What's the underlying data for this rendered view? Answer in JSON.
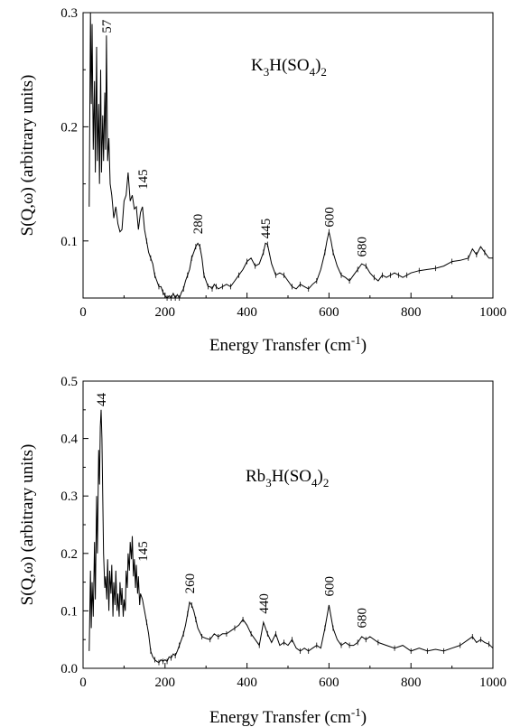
{
  "chart_data": [
    {
      "type": "line",
      "compound": {
        "base": "K",
        "sub1": "3",
        "mid": "H(SO",
        "sub2": "4",
        "end": ")",
        "sub3": "2"
      },
      "xlabel": {
        "main": "Energy Transfer (cm",
        "sup": "-1",
        "end": ")"
      },
      "ylabel": "S(Q,ω) (arbitrary units)",
      "xlim": [
        0,
        1000
      ],
      "ylim": [
        0.05,
        0.3
      ],
      "xticks": [
        "0",
        "200",
        "400",
        "600",
        "800",
        "1000"
      ],
      "yticks": [
        "0.1",
        "0.2",
        "0.3"
      ],
      "ytick_values": [
        0.1,
        0.2,
        0.3
      ],
      "peak_labels": [
        {
          "text": "57",
          "x": 57,
          "y": 0.282
        },
        {
          "text": "145",
          "x": 145,
          "y": 0.145
        },
        {
          "text": "280",
          "x": 280,
          "y": 0.106
        },
        {
          "text": "445",
          "x": 445,
          "y": 0.102
        },
        {
          "text": "600",
          "x": 600,
          "y": 0.112
        },
        {
          "text": "680",
          "x": 680,
          "y": 0.086
        }
      ],
      "series": [
        {
          "x": [
            15,
            18,
            20,
            22,
            25,
            28,
            30,
            33,
            35,
            38,
            40,
            43,
            45,
            48,
            50,
            53,
            55,
            57,
            60,
            63,
            66,
            70,
            75,
            80,
            85,
            90,
            95,
            100,
            105,
            110,
            115,
            120,
            125,
            130,
            135,
            140,
            145,
            150,
            155,
            160,
            165,
            170,
            175,
            180,
            185,
            190,
            195,
            200,
            205,
            210,
            215,
            220,
            225,
            230,
            235,
            240,
            245,
            250,
            255,
            260,
            265,
            270,
            275,
            280,
            285,
            290,
            295,
            300,
            305,
            310,
            315,
            320,
            325,
            330,
            340,
            350,
            360,
            370,
            380,
            390,
            400,
            410,
            420,
            430,
            440,
            445,
            450,
            460,
            470,
            480,
            490,
            500,
            510,
            520,
            530,
            540,
            550,
            560,
            570,
            580,
            590,
            595,
            600,
            605,
            610,
            620,
            630,
            640,
            650,
            660,
            670,
            680,
            690,
            700,
            710,
            720,
            730,
            740,
            750,
            760,
            770,
            780,
            790,
            800,
            820,
            840,
            860,
            880,
            900,
            920,
            940,
            950,
            960,
            970,
            980,
            990,
            1000
          ],
          "y": [
            0.13,
            0.3,
            0.22,
            0.29,
            0.18,
            0.24,
            0.16,
            0.27,
            0.17,
            0.22,
            0.15,
            0.25,
            0.16,
            0.21,
            0.17,
            0.23,
            0.18,
            0.28,
            0.17,
            0.19,
            0.15,
            0.14,
            0.12,
            0.13,
            0.115,
            0.108,
            0.11,
            0.135,
            0.14,
            0.16,
            0.135,
            0.14,
            0.128,
            0.13,
            0.11,
            0.125,
            0.13,
            0.11,
            0.1,
            0.09,
            0.085,
            0.08,
            0.07,
            0.065,
            0.06,
            0.06,
            0.055,
            0.052,
            0.05,
            0.052,
            0.05,
            0.054,
            0.05,
            0.053,
            0.05,
            0.055,
            0.058,
            0.065,
            0.07,
            0.075,
            0.085,
            0.09,
            0.095,
            0.098,
            0.095,
            0.085,
            0.07,
            0.065,
            0.06,
            0.06,
            0.058,
            0.062,
            0.06,
            0.058,
            0.06,
            0.062,
            0.06,
            0.065,
            0.07,
            0.075,
            0.082,
            0.085,
            0.078,
            0.08,
            0.09,
            0.098,
            0.097,
            0.08,
            0.07,
            0.072,
            0.07,
            0.065,
            0.06,
            0.058,
            0.062,
            0.06,
            0.058,
            0.062,
            0.065,
            0.075,
            0.09,
            0.1,
            0.108,
            0.1,
            0.09,
            0.078,
            0.07,
            0.068,
            0.065,
            0.07,
            0.075,
            0.08,
            0.078,
            0.072,
            0.068,
            0.065,
            0.07,
            0.068,
            0.07,
            0.072,
            0.07,
            0.068,
            0.07,
            0.072,
            0.074,
            0.075,
            0.076,
            0.078,
            0.082,
            0.083,
            0.085,
            0.093,
            0.088,
            0.095,
            0.09,
            0.085,
            0.085
          ]
        }
      ]
    },
    {
      "type": "line",
      "compound": {
        "base": "Rb",
        "sub1": "3",
        "mid": "H(SO",
        "sub2": "4",
        "end": ")",
        "sub3": "2"
      },
      "xlabel": {
        "main": "Energy Transfer (cm",
        "sup": "-1",
        "end": ")"
      },
      "ylabel": "S(Q,ω) (arbitrary units)",
      "xlim": [
        0,
        1000
      ],
      "ylim": [
        0,
        0.5
      ],
      "xticks": [
        "0",
        "200",
        "400",
        "600",
        "800",
        "1000"
      ],
      "yticks": [
        "0.0",
        "0.1",
        "0.2",
        "0.3",
        "0.4",
        "0.5"
      ],
      "ytick_values": [
        0,
        0.1,
        0.2,
        0.3,
        0.4,
        0.5
      ],
      "peak_labels": [
        {
          "text": "44",
          "x": 44,
          "y": 0.456
        },
        {
          "text": "145",
          "x": 145,
          "y": 0.186
        },
        {
          "text": "260",
          "x": 260,
          "y": 0.13
        },
        {
          "text": "440",
          "x": 440,
          "y": 0.095
        },
        {
          "text": "600",
          "x": 600,
          "y": 0.125
        },
        {
          "text": "680",
          "x": 680,
          "y": 0.07
        }
      ],
      "series": [
        {
          "x": [
            15,
            18,
            20,
            22,
            25,
            28,
            30,
            33,
            35,
            38,
            40,
            42,
            44,
            46,
            48,
            50,
            53,
            55,
            58,
            60,
            63,
            65,
            68,
            70,
            73,
            75,
            78,
            80,
            83,
            85,
            88,
            90,
            93,
            95,
            98,
            100,
            103,
            105,
            108,
            110,
            113,
            115,
            118,
            120,
            123,
            125,
            128,
            130,
            133,
            135,
            138,
            140,
            145,
            150,
            155,
            160,
            165,
            170,
            175,
            180,
            185,
            190,
            195,
            200,
            205,
            210,
            215,
            220,
            225,
            230,
            235,
            240,
            245,
            250,
            255,
            260,
            265,
            270,
            275,
            280,
            290,
            300,
            310,
            320,
            330,
            340,
            350,
            360,
            370,
            380,
            390,
            400,
            410,
            420,
            430,
            440,
            450,
            460,
            470,
            480,
            490,
            500,
            510,
            520,
            530,
            540,
            550,
            560,
            570,
            580,
            590,
            600,
            610,
            620,
            630,
            640,
            650,
            660,
            670,
            680,
            690,
            700,
            720,
            740,
            760,
            780,
            800,
            820,
            840,
            860,
            880,
            900,
            920,
            940,
            950,
            960,
            970,
            980,
            990,
            1000
          ],
          "y": [
            0.03,
            0.17,
            0.07,
            0.15,
            0.09,
            0.22,
            0.12,
            0.3,
            0.2,
            0.38,
            0.32,
            0.42,
            0.45,
            0.4,
            0.3,
            0.2,
            0.14,
            0.16,
            0.12,
            0.19,
            0.1,
            0.17,
            0.13,
            0.18,
            0.09,
            0.15,
            0.11,
            0.17,
            0.1,
            0.13,
            0.09,
            0.15,
            0.11,
            0.14,
            0.09,
            0.12,
            0.1,
            0.17,
            0.14,
            0.2,
            0.17,
            0.22,
            0.19,
            0.23,
            0.16,
            0.19,
            0.14,
            0.18,
            0.13,
            0.16,
            0.11,
            0.13,
            0.12,
            0.1,
            0.08,
            0.06,
            0.03,
            0.02,
            0.015,
            0.012,
            0.01,
            0.015,
            0.012,
            0.015,
            0.012,
            0.02,
            0.018,
            0.025,
            0.022,
            0.03,
            0.04,
            0.05,
            0.06,
            0.075,
            0.095,
            0.115,
            0.11,
            0.1,
            0.085,
            0.07,
            0.055,
            0.052,
            0.05,
            0.06,
            0.055,
            0.06,
            0.06,
            0.065,
            0.07,
            0.075,
            0.085,
            0.075,
            0.06,
            0.05,
            0.04,
            0.08,
            0.06,
            0.045,
            0.06,
            0.04,
            0.045,
            0.04,
            0.05,
            0.035,
            0.03,
            0.035,
            0.03,
            0.035,
            0.04,
            0.035,
            0.07,
            0.11,
            0.07,
            0.05,
            0.04,
            0.045,
            0.04,
            0.04,
            0.045,
            0.055,
            0.05,
            0.055,
            0.045,
            0.04,
            0.035,
            0.04,
            0.03,
            0.035,
            0.03,
            0.033,
            0.03,
            0.035,
            0.04,
            0.05,
            0.055,
            0.045,
            0.05,
            0.045,
            0.042,
            0.035
          ]
        }
      ]
    }
  ]
}
